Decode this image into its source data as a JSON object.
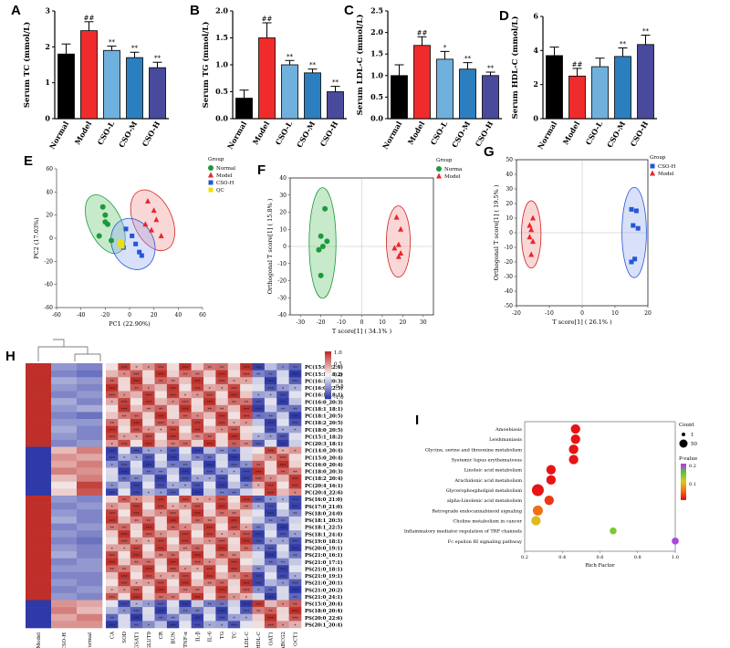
{
  "chart_data": [
    {
      "id": "A",
      "type": "bar",
      "letter": "A",
      "ylabel": "Serum TC (mmol/L)",
      "ylim": [
        0,
        3
      ],
      "yticks": [
        0,
        1,
        2,
        3
      ],
      "categories": [
        "Normal",
        "Model",
        "CSO-L",
        "CSO-M",
        "CSO-H"
      ],
      "values": [
        1.8,
        2.45,
        1.9,
        1.7,
        1.42
      ],
      "errors": [
        0.28,
        0.25,
        0.12,
        0.15,
        0.15
      ],
      "annotations": [
        "",
        "##",
        "**",
        "**",
        "**"
      ]
    },
    {
      "id": "B",
      "type": "bar",
      "letter": "B",
      "ylabel": "Serum TG (mmol/L)",
      "ylim": [
        0,
        2
      ],
      "yticks": [
        0.0,
        0.5,
        1.0,
        1.5,
        2.0
      ],
      "categories": [
        "Normal",
        "Model",
        "CSO-L",
        "CSO-M",
        "CSO-H"
      ],
      "values": [
        0.38,
        1.5,
        1.0,
        0.85,
        0.5
      ],
      "errors": [
        0.15,
        0.28,
        0.08,
        0.07,
        0.1
      ],
      "annotations": [
        "",
        "##",
        "**",
        "**",
        "**"
      ]
    },
    {
      "id": "C",
      "type": "bar",
      "letter": "C",
      "ylabel": "Serum LDL-C (mmol/L)",
      "ylim": [
        0,
        2.5
      ],
      "yticks": [
        0.0,
        0.5,
        1.0,
        1.5,
        2.0,
        2.5
      ],
      "categories": [
        "Normal",
        "Model",
        "CSO-L",
        "CSO-M",
        "CSO-H"
      ],
      "values": [
        1.0,
        1.7,
        1.38,
        1.15,
        1.0
      ],
      "errors": [
        0.25,
        0.2,
        0.18,
        0.15,
        0.08
      ],
      "annotations": [
        "",
        "##",
        "*",
        "**",
        "**"
      ]
    },
    {
      "id": "D",
      "type": "bar",
      "letter": "D",
      "ylabel": "Serum HDL-C (mmol/L)",
      "ylim": [
        0,
        6
      ],
      "yticks": [
        0,
        2,
        4,
        6
      ],
      "categories": [
        "Normal",
        "Model",
        "CSO-L",
        "CSO-M",
        "CSO-H"
      ],
      "values": [
        3.7,
        2.5,
        3.05,
        3.65,
        4.35
      ],
      "errors": [
        0.5,
        0.45,
        0.5,
        0.5,
        0.55
      ],
      "annotations": [
        "",
        "##",
        "",
        "**",
        "**"
      ]
    },
    {
      "id": "E",
      "type": "scatter",
      "letter": "E",
      "xlabel": "PC1 (22.90%)",
      "ylabel": "PC2 (17.03%)",
      "xlim": [
        -60,
        60
      ],
      "ylim": [
        -60,
        60
      ],
      "xticks": [
        -60,
        -40,
        -20,
        0,
        20,
        40,
        60
      ],
      "yticks": [
        -60,
        -40,
        -20,
        0,
        20,
        40,
        60
      ],
      "legend_title": "Group",
      "series": [
        {
          "name": "Normal",
          "marker": "circle",
          "color": "#1a9a3a",
          "x": [
            -22,
            -20,
            -18,
            -25,
            -15,
            -20
          ],
          "y": [
            27,
            14,
            12,
            2,
            -2,
            20
          ]
        },
        {
          "name": "Model",
          "marker": "triangle",
          "color": "#e8262a",
          "x": [
            15,
            20,
            22,
            18,
            26,
            13
          ],
          "y": [
            32,
            24,
            16,
            7,
            2,
            12
          ]
        },
        {
          "name": "CSO-H",
          "marker": "square",
          "color": "#2456d6",
          "x": [
            -5,
            -3,
            2,
            5,
            8,
            10
          ],
          "y": [
            -8,
            8,
            2,
            -5,
            -12,
            -15
          ]
        },
        {
          "name": "QC",
          "marker": "square",
          "color": "#f0e000",
          "x": [
            -8,
            -7,
            -6
          ],
          "y": [
            -5,
            -3,
            -7
          ]
        }
      ]
    },
    {
      "id": "F",
      "type": "scatter",
      "letter": "F",
      "xlabel": "T score[1] ( 34.1% )",
      "ylabel": "Orthogonal T score[1] ( 15.8% )",
      "xlim": [
        -35,
        35
      ],
      "ylim": [
        -40,
        40
      ],
      "xticks": [
        -30,
        -20,
        -10,
        0,
        10,
        20,
        30
      ],
      "yticks": [
        -40,
        -30,
        -20,
        -10,
        0,
        10,
        20,
        30,
        40
      ],
      "legend_title": "Group",
      "series": [
        {
          "name": "Norma",
          "marker": "circle",
          "color": "#1a9a3a",
          "x": [
            -18,
            -20,
            -17,
            -21,
            -19,
            -20
          ],
          "y": [
            22,
            6,
            3,
            -2,
            0,
            -17
          ]
        },
        {
          "name": "Model",
          "marker": "triangle",
          "color": "#e8262a",
          "x": [
            17,
            19,
            18,
            16,
            19,
            18
          ],
          "y": [
            17,
            10,
            1,
            -1,
            -4,
            -6
          ]
        }
      ]
    },
    {
      "id": "G",
      "type": "scatter",
      "letter": "G",
      "xlabel": "T score[1] ( 26.1% )",
      "ylabel": "Orthogonal T score[1] ( 19.5% )",
      "xlim": [
        -20,
        20
      ],
      "ylim": [
        -50,
        50
      ],
      "xticks": [
        -20,
        -10,
        0,
        10,
        20
      ],
      "yticks": [
        -50,
        -40,
        -30,
        -20,
        -10,
        0,
        10,
        20,
        30,
        40,
        50
      ],
      "legend_title": "Group",
      "series": [
        {
          "name": "CSO-H",
          "marker": "square",
          "color": "#2456d6",
          "x": [
            15,
            16.5,
            15.5,
            17,
            16,
            15
          ],
          "y": [
            16,
            15,
            5,
            3,
            -18,
            -20
          ]
        },
        {
          "name": "Model",
          "marker": "triangle",
          "color": "#e8262a",
          "x": [
            -15,
            -16,
            -15.5,
            -16,
            -15,
            -15.5
          ],
          "y": [
            10,
            5,
            2,
            -3,
            -6,
            -15
          ]
        }
      ]
    },
    {
      "id": "H",
      "type": "heatmap",
      "letter": "H",
      "legend_ticks": [
        "1.0",
        "0.5",
        "0.0",
        "-0.5",
        "-1.0"
      ],
      "group_columns": [
        "Model",
        "CSO-H",
        "Normal"
      ],
      "indicator_columns": [
        "CA",
        "SOD",
        "GSAT1",
        "GLUT9",
        "CR",
        "BUN",
        "TNF-α",
        "IL-β",
        "IL-6",
        "TG",
        "TC",
        "LDL-C",
        "HDL-C",
        "OAT1",
        "ABCG2",
        "OCT1"
      ],
      "rows": [
        "PC(15:0_22:6)",
        "PC(15:1_18:2)",
        "PC(16:1_20:3)",
        "PC(16:0_22:5)",
        "PC(16:1_18:1)",
        "PC(16:0_20:3)",
        "PC(18:1_18:1)",
        "PC(18:1_20:5)",
        "PC(18:2_20:5)",
        "PC(18:0_20:5)",
        "PC(15:1_18:2)",
        "PC(20:3_18:1)",
        "PC(14:0_20:4)",
        "PC(15:0_20:4)",
        "PC(16:0_20:4)",
        "PC(18:0_20:3)",
        "PC(18:2_20:4)",
        "PC(20:4_16:1)",
        "PC(20:4_22:6)",
        "PS(16:0_21:0)",
        "PS(17:0_21:0)",
        "PS(18:0_24:0)",
        "PS(18:1_20:3)",
        "PS(18:1_22:5)",
        "PS(18:1_24:4)",
        "PS(19:0_18:1)",
        "PS(20:0_19:1)",
        "PS(21:0_16:1)",
        "PS(21:0_17:1)",
        "PS(21:0_18:1)",
        "PS(21:0_19:1)",
        "PS(21:0_20:1)",
        "PS(21:0_20:2)",
        "PS(21:0_24:1)",
        "PS(15:0_20:4)",
        "PS(18:0_20:4)",
        "PS(20:0_22:6)",
        "PS(20:1_20:4)"
      ],
      "group_values": [
        [
          1,
          -0.5,
          -0.6
        ],
        [
          1,
          -0.6,
          -0.7
        ],
        [
          1,
          -0.4,
          -0.5
        ],
        [
          1,
          -0.5,
          -0.6
        ],
        [
          1,
          -0.6,
          -0.5
        ],
        [
          1,
          -0.4,
          -0.6
        ],
        [
          1,
          -0.5,
          -0.4
        ],
        [
          1,
          -0.6,
          -0.7
        ],
        [
          1,
          -0.5,
          -0.5
        ],
        [
          1,
          -0.4,
          -0.6
        ],
        [
          1,
          -0.5,
          -0.6
        ],
        [
          1,
          -0.6,
          -0.5
        ],
        [
          -1,
          0.3,
          0.6
        ],
        [
          -1,
          0.5,
          0.4
        ],
        [
          -1,
          0.4,
          0.6
        ],
        [
          -1,
          0.6,
          0.5
        ],
        [
          -1,
          0.3,
          0.6
        ],
        [
          -1,
          0.1,
          0.9
        ],
        [
          -1,
          0.2,
          0.8
        ],
        [
          1,
          -0.5,
          -0.6
        ],
        [
          1,
          -0.6,
          -0.5
        ],
        [
          1,
          -0.5,
          -0.6
        ],
        [
          1,
          -0.4,
          -0.6
        ],
        [
          1,
          -0.6,
          -0.5
        ],
        [
          1,
          -0.5,
          -0.6
        ],
        [
          1,
          -0.6,
          -0.7
        ],
        [
          1,
          -0.5,
          -0.6
        ],
        [
          1,
          -0.4,
          -0.6
        ],
        [
          1,
          -0.6,
          -0.5
        ],
        [
          1,
          -0.5,
          -0.5
        ],
        [
          1,
          -0.6,
          -0.6
        ],
        [
          1,
          -0.5,
          -0.6
        ],
        [
          1,
          -0.6,
          -0.5
        ],
        [
          1,
          -0.5,
          -0.6
        ],
        [
          -1,
          0.5,
          0.4
        ],
        [
          -1,
          0.6,
          0.3
        ],
        [
          -1,
          0.4,
          0.6
        ],
        [
          -1,
          0.5,
          0.5
        ]
      ]
    },
    {
      "id": "I",
      "type": "scatter",
      "letter": "I",
      "xlabel": "Rich Factor",
      "xlim": [
        0.2,
        1.0
      ],
      "xticks": [
        0.2,
        0.4,
        0.6,
        0.8,
        1.0
      ],
      "size_legend_title": "Count",
      "size_legend": [
        1,
        50
      ],
      "color_legend_title": "P-value",
      "color_legend_ticks": [
        "0.2",
        "0.1"
      ],
      "pathways": [
        {
          "name": "Amoebiasis",
          "rich": 0.47,
          "count": 40,
          "p": 0.0
        },
        {
          "name": "Leishmaniasis",
          "rich": 0.47,
          "count": 40,
          "p": 0.0
        },
        {
          "name": "Glycine, serine and threonine metabolism",
          "rich": 0.46,
          "count": 40,
          "p": 0.0
        },
        {
          "name": "Systemic lupus erythematosus",
          "rich": 0.46,
          "count": 40,
          "p": 0.0
        },
        {
          "name": "Linoleic acid metabolism",
          "rich": 0.34,
          "count": 40,
          "p": 0.0
        },
        {
          "name": "Arachidonic acid metabolism",
          "rich": 0.34,
          "count": 40,
          "p": 0.0
        },
        {
          "name": "Glycerophospholipid metabolism",
          "rich": 0.27,
          "count": 60,
          "p": 0.0
        },
        {
          "name": "alpha-Linolenic acid metabolism",
          "rich": 0.33,
          "count": 40,
          "p": 0.02
        },
        {
          "name": "Retrograde endocannabinoid signaling",
          "rich": 0.27,
          "count": 45,
          "p": 0.05
        },
        {
          "name": "Choline metabolism in cancer",
          "rich": 0.26,
          "count": 40,
          "p": 0.1
        },
        {
          "name": "Inflammatory mediator regulation of TRP channels",
          "rich": 0.67,
          "count": 20,
          "p": 0.15
        },
        {
          "name": "Fc epsilon RI signaling pathway",
          "rich": 1.0,
          "count": 20,
          "p": 0.22
        }
      ]
    }
  ]
}
